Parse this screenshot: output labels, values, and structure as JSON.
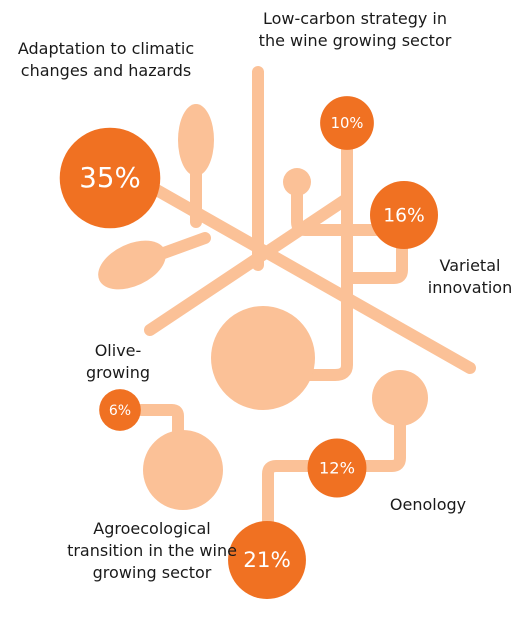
{
  "chart_data": {
    "type": "bubble",
    "categories": [
      "Adaptation to climatic changes and hazards",
      "Low-carbon strategy in the wine growing sector",
      "Varietal innovation",
      "Olive-growing",
      "Oenology",
      "Agroecological transition in the wine growing sector"
    ],
    "values": [
      35,
      10,
      16,
      6,
      12,
      21
    ],
    "value_labels": [
      "35%",
      "10%",
      "16%",
      "6%",
      "12%",
      "21%"
    ],
    "color": "#f07122"
  }
}
